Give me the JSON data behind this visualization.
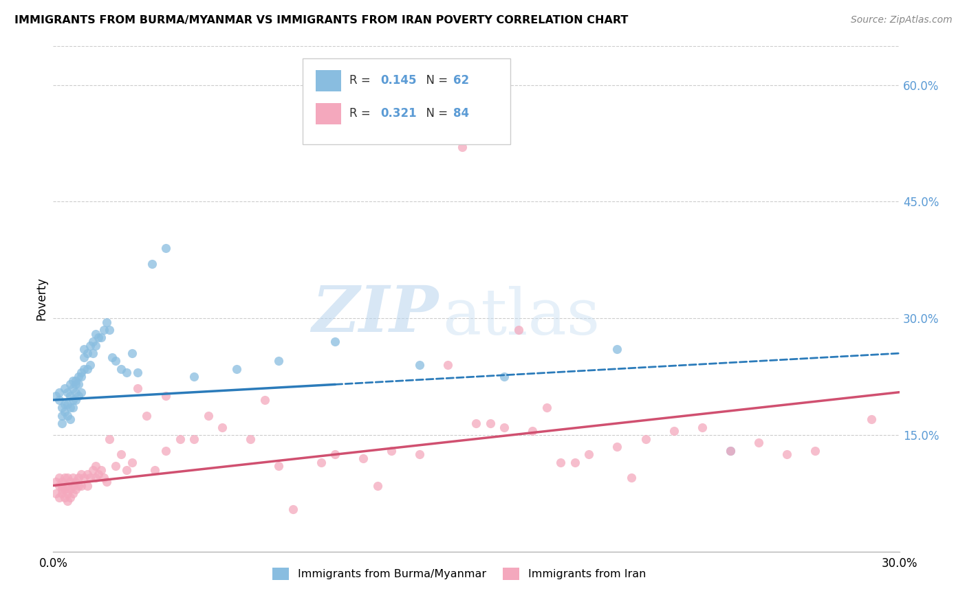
{
  "title": "IMMIGRANTS FROM BURMA/MYANMAR VS IMMIGRANTS FROM IRAN POVERTY CORRELATION CHART",
  "source": "Source: ZipAtlas.com",
  "ylabel": "Poverty",
  "watermark_zip": "ZIP",
  "watermark_atlas": "atlas",
  "xlim": [
    0.0,
    0.3
  ],
  "ylim": [
    0.0,
    0.65
  ],
  "yticks": [
    0.15,
    0.3,
    0.45,
    0.6
  ],
  "ytick_labels": [
    "15.0%",
    "30.0%",
    "45.0%",
    "60.0%"
  ],
  "xtick_labels": [
    "0.0%",
    "30.0%"
  ],
  "legend_R_burma": "0.145",
  "legend_N_burma": "62",
  "legend_R_iran": "0.321",
  "legend_N_iran": "84",
  "color_burma": "#89bde0",
  "color_iran": "#f4a8bd",
  "color_burma_line": "#2b7bba",
  "color_iran_line": "#d05070",
  "color_right_ticks": "#5b9bd5",
  "legend_label_burma": "Immigrants from Burma/Myanmar",
  "legend_label_iran": "Immigrants from Iran",
  "burma_x": [
    0.001,
    0.002,
    0.002,
    0.003,
    0.003,
    0.003,
    0.004,
    0.004,
    0.004,
    0.005,
    0.005,
    0.005,
    0.006,
    0.006,
    0.006,
    0.006,
    0.007,
    0.007,
    0.007,
    0.007,
    0.008,
    0.008,
    0.008,
    0.008,
    0.009,
    0.009,
    0.009,
    0.01,
    0.01,
    0.01,
    0.011,
    0.011,
    0.011,
    0.012,
    0.012,
    0.013,
    0.013,
    0.014,
    0.014,
    0.015,
    0.015,
    0.016,
    0.017,
    0.018,
    0.019,
    0.02,
    0.021,
    0.022,
    0.024,
    0.026,
    0.028,
    0.03,
    0.035,
    0.04,
    0.05,
    0.065,
    0.08,
    0.1,
    0.13,
    0.16,
    0.2,
    0.24
  ],
  "burma_y": [
    0.2,
    0.195,
    0.205,
    0.185,
    0.175,
    0.165,
    0.19,
    0.18,
    0.21,
    0.175,
    0.19,
    0.205,
    0.2,
    0.215,
    0.185,
    0.17,
    0.22,
    0.21,
    0.195,
    0.185,
    0.215,
    0.22,
    0.205,
    0.195,
    0.225,
    0.215,
    0.2,
    0.23,
    0.225,
    0.205,
    0.25,
    0.26,
    0.235,
    0.255,
    0.235,
    0.265,
    0.24,
    0.27,
    0.255,
    0.28,
    0.265,
    0.275,
    0.275,
    0.285,
    0.295,
    0.285,
    0.25,
    0.245,
    0.235,
    0.23,
    0.255,
    0.23,
    0.37,
    0.39,
    0.225,
    0.235,
    0.245,
    0.27,
    0.24,
    0.225,
    0.26,
    0.13
  ],
  "iran_x": [
    0.001,
    0.001,
    0.002,
    0.002,
    0.002,
    0.003,
    0.003,
    0.003,
    0.003,
    0.004,
    0.004,
    0.004,
    0.005,
    0.005,
    0.005,
    0.005,
    0.006,
    0.006,
    0.006,
    0.007,
    0.007,
    0.007,
    0.008,
    0.008,
    0.009,
    0.009,
    0.01,
    0.01,
    0.011,
    0.012,
    0.012,
    0.013,
    0.014,
    0.015,
    0.015,
    0.016,
    0.017,
    0.018,
    0.019,
    0.02,
    0.022,
    0.024,
    0.026,
    0.028,
    0.03,
    0.033,
    0.036,
    0.04,
    0.045,
    0.05,
    0.06,
    0.07,
    0.08,
    0.095,
    0.11,
    0.13,
    0.15,
    0.17,
    0.19,
    0.21,
    0.23,
    0.25,
    0.27,
    0.29,
    0.04,
    0.055,
    0.075,
    0.1,
    0.12,
    0.14,
    0.16,
    0.18,
    0.2,
    0.22,
    0.24,
    0.26,
    0.175,
    0.155,
    0.185,
    0.205,
    0.145,
    0.165,
    0.085,
    0.115
  ],
  "iran_y": [
    0.09,
    0.075,
    0.085,
    0.095,
    0.07,
    0.08,
    0.09,
    0.075,
    0.085,
    0.095,
    0.08,
    0.07,
    0.085,
    0.095,
    0.075,
    0.065,
    0.09,
    0.08,
    0.07,
    0.095,
    0.085,
    0.075,
    0.09,
    0.08,
    0.095,
    0.085,
    0.1,
    0.085,
    0.095,
    0.1,
    0.085,
    0.095,
    0.105,
    0.11,
    0.095,
    0.1,
    0.105,
    0.095,
    0.09,
    0.145,
    0.11,
    0.125,
    0.105,
    0.115,
    0.21,
    0.175,
    0.105,
    0.13,
    0.145,
    0.145,
    0.16,
    0.145,
    0.11,
    0.115,
    0.12,
    0.125,
    0.165,
    0.155,
    0.125,
    0.145,
    0.16,
    0.14,
    0.13,
    0.17,
    0.2,
    0.175,
    0.195,
    0.125,
    0.13,
    0.24,
    0.16,
    0.115,
    0.135,
    0.155,
    0.13,
    0.125,
    0.185,
    0.165,
    0.115,
    0.095,
    0.52,
    0.285,
    0.055,
    0.085
  ]
}
